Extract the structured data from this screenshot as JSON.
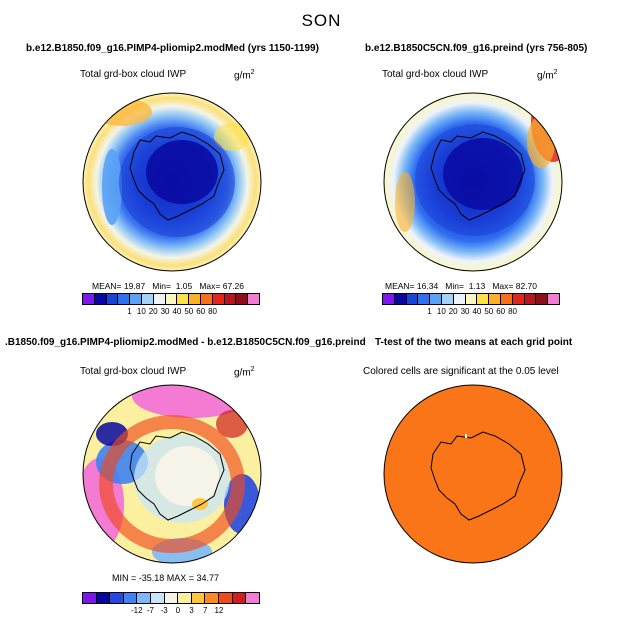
{
  "figure": {
    "season_title": "SON"
  },
  "panels": {
    "top_left": {
      "title": "b.e12.B1850.f09_g16.PIMP4-pliomip2.modMed (yrs 1150-1199)",
      "subtitle": "Total grd-box cloud IWP",
      "units": "g/m",
      "units_exp": "2",
      "mean_label": "MEAN=",
      "mean": "19.87",
      "min_label": "Min=",
      "min": "1.05",
      "max_label": "Max=",
      "max": "67.26"
    },
    "top_right": {
      "title": "b.e12.B1850C5CN.f09_g16.preind (yrs 756-805)",
      "subtitle": "Total grd-box cloud IWP",
      "units": "g/m",
      "units_exp": "2",
      "mean_label": "MEAN=",
      "mean": "16.34",
      "min_label": "Min=",
      "min": "1.13",
      "max_label": "Max=",
      "max": "82.70"
    },
    "bottom_left": {
      "title": ".B1850.f09_g16.PIMP4-pliomip2.modMed - b.e12.B1850C5CN.f09_g16.preind",
      "subtitle": "Total grd-box cloud IWP",
      "units": "g/m",
      "units_exp": "2",
      "stats": "MIN = -35.18  MAX =  34.77"
    },
    "bottom_right": {
      "title": "T-test of the two means at each grid point",
      "subtitle": "Colored cells are significant at the 0.05 level"
    }
  },
  "colorbars": {
    "absolute": {
      "colors": [
        "#7b1ae8",
        "#0808a0",
        "#1844d8",
        "#2f6ff0",
        "#5aa2f5",
        "#a6d2f5",
        "#eef3f8",
        "#fbf7c0",
        "#fde14a",
        "#fbb02c",
        "#f76e1d",
        "#e0271b",
        "#b8151c",
        "#8e0e1a",
        "#f37bd3"
      ],
      "labels": [
        "1",
        "10",
        "20",
        "30",
        "40",
        "50",
        "60",
        "80"
      ]
    },
    "difference": {
      "colors": [
        "#7b1ae8",
        "#0808a0",
        "#2448e0",
        "#3d83f2",
        "#7cb8f7",
        "#c9e5f9",
        "#f6f4e8",
        "#fbf0a0",
        "#fdc63c",
        "#fa8a24",
        "#ef4a1c",
        "#cf1d1d",
        "#f37bd3"
      ],
      "labels": [
        "-12",
        "-7",
        "-3",
        "0",
        "3",
        "7",
        "12"
      ]
    }
  }
}
